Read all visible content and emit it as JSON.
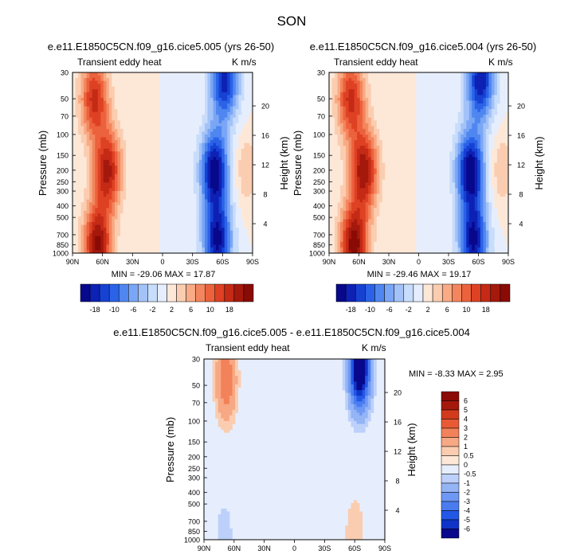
{
  "figure_title": "SON",
  "colors": {
    "neg": [
      "#08088c",
      "#0d21b4",
      "#1642d4",
      "#2a62e8",
      "#4f86f0",
      "#7aa6f5",
      "#a2c2f8",
      "#c8dcfb",
      "#e6eefd"
    ],
    "pos": [
      "#fde8d8",
      "#fbcdb0",
      "#f8ab85",
      "#f3865e",
      "#ec623d",
      "#de4123",
      "#c42a15",
      "#a5180c",
      "#8a0a05"
    ]
  },
  "chart_data": [
    {
      "type": "contour",
      "title": "e.e11.E1850C5CN.f09_g16.cice5.005 (yrs 26-50)",
      "left_label": "Transient eddy heat",
      "right_label": "K m/s",
      "xlabel": "",
      "ylabel": "Pressure (mb)",
      "ylabel_right": "Height (km)",
      "x_ticks": [
        "90N",
        "60N",
        "30N",
        "0",
        "30S",
        "60S",
        "90S"
      ],
      "y_ticks": [
        "30",
        "50",
        "70",
        "100",
        "150",
        "200",
        "250",
        "300",
        "400",
        "500",
        "700",
        "850",
        "1000"
      ],
      "height_ticks": [
        "4",
        "8",
        "12",
        "16",
        "20"
      ],
      "min_max": "MIN = -29.06  MAX = 17.87",
      "colorbar": {
        "labels": [
          "-18",
          "-10",
          "-6",
          "-2",
          "2",
          "6",
          "10",
          "18"
        ]
      },
      "lobes": [
        {
          "lat": 68,
          "p": 50,
          "value": 14
        },
        {
          "lat": 55,
          "p": 200,
          "value": 16
        },
        {
          "lat": 65,
          "p": 850,
          "value": 17.87
        },
        {
          "lat": -62,
          "p": 35,
          "value": -25
        },
        {
          "lat": -52,
          "p": 200,
          "value": -29.06
        },
        {
          "lat": -55,
          "p": 800,
          "value": -27
        },
        {
          "lat": -82,
          "p": 200,
          "value": 4
        }
      ]
    },
    {
      "type": "contour",
      "title": "e.e11.E1850C5CN.f09_g16.cice5.004 (yrs 26-50)",
      "left_label": "Transient eddy heat",
      "right_label": "K m/s",
      "xlabel": "",
      "ylabel": "Pressure (mb)",
      "ylabel_right": "Height (km)",
      "x_ticks": [
        "90N",
        "60N",
        "30N",
        "0",
        "30S",
        "60S",
        "90S"
      ],
      "y_ticks": [
        "30",
        "50",
        "70",
        "100",
        "150",
        "200",
        "250",
        "300",
        "400",
        "500",
        "700",
        "850",
        "1000"
      ],
      "height_ticks": [
        "4",
        "8",
        "12",
        "16",
        "20"
      ],
      "min_max": "MIN = -29.46  MAX = 19.17",
      "colorbar": {
        "labels": [
          "-18",
          "-10",
          "-6",
          "-2",
          "2",
          "6",
          "10",
          "18"
        ]
      },
      "lobes": [
        {
          "lat": 68,
          "p": 50,
          "value": 14
        },
        {
          "lat": 55,
          "p": 200,
          "value": 17
        },
        {
          "lat": 65,
          "p": 850,
          "value": 19.17
        },
        {
          "lat": -62,
          "p": 35,
          "value": -26
        },
        {
          "lat": -52,
          "p": 200,
          "value": -29.46
        },
        {
          "lat": -55,
          "p": 800,
          "value": -27
        },
        {
          "lat": -82,
          "p": 200,
          "value": 4
        }
      ]
    },
    {
      "type": "contour",
      "title": "e.e11.E1850C5CN.f09_g16.cice5.005 - e.e11.E1850C5CN.f09_g16.cice5.004",
      "left_label": "Transient eddy heat",
      "right_label": "K m/s",
      "xlabel": "",
      "ylabel": "Pressure (mb)",
      "ylabel_right": "Height (km)",
      "x_ticks": [
        "90N",
        "60N",
        "30N",
        "0",
        "30S",
        "60S",
        "90S"
      ],
      "y_ticks": [
        "30",
        "50",
        "70",
        "100",
        "150",
        "200",
        "250",
        "300",
        "400",
        "500",
        "700",
        "850",
        "1000"
      ],
      "height_ticks": [
        "4",
        "8",
        "12",
        "16",
        "20"
      ],
      "min_max": "MIN = -8.33  MAX =  2.95",
      "colorbar": {
        "labels": [
          "6",
          "5",
          "4",
          "3",
          "2",
          "1",
          "0.5",
          "0",
          "-0.5",
          "-1",
          "-2",
          "-3",
          "-4",
          "-5",
          "-6"
        ]
      },
      "lobes": [
        {
          "lat": 68,
          "p": 45,
          "value": 2.95
        },
        {
          "lat": -65,
          "p": 35,
          "value": -8.33
        },
        {
          "lat": -60,
          "p": 900,
          "value": 1
        },
        {
          "lat": 70,
          "p": 900,
          "value": -0.8
        }
      ]
    }
  ]
}
